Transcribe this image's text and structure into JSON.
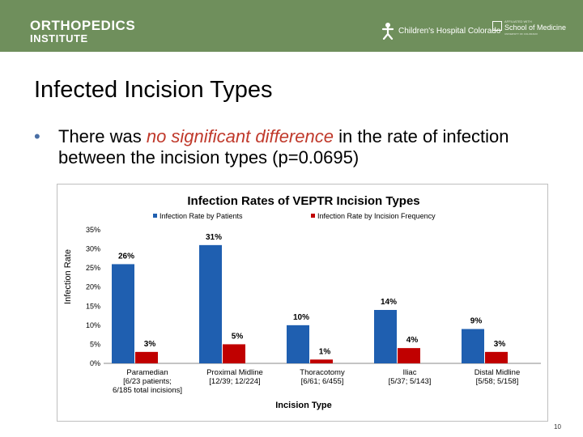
{
  "header": {
    "brand_line1": "ORTHOPEDICS",
    "brand_line2": "INSTITUTE",
    "partner1": "Children's Hospital Colorado",
    "partner2_small": "AFFILIATED WITH",
    "partner2_name": "School of Medicine",
    "partner2_sub": "UNIVERSITY OF COLORADO"
  },
  "slide": {
    "title": "Infected Incision Types",
    "bullet_dot": "•",
    "bullet_pre": "There was ",
    "bullet_emphasis": "no significant difference",
    "bullet_post": " in the rate of infection between the incision types (p=0.0695)",
    "page_number": "10"
  },
  "colors": {
    "header_bg": "#6f8f5c",
    "patients": "#1f5fb0",
    "frequency": "#c00000",
    "emphasis": "#c0392b"
  },
  "chart_data": {
    "type": "bar",
    "title": "Infection Rates of VEPTR Incision Types",
    "xlabel": "Incision Type",
    "ylabel": "Infection Rate",
    "ylim": [
      0,
      35
    ],
    "yticks": [
      "0%",
      "5%",
      "10%",
      "15%",
      "20%",
      "25%",
      "30%",
      "35%"
    ],
    "categories": [
      [
        "Paramedian",
        "[6/23 patients;",
        "6/185 total incisions]"
      ],
      [
        "Proximal Midline",
        "[12/39; 12/224]"
      ],
      [
        "Thoracotomy",
        "[6/61; 6/455]"
      ],
      [
        "Iliac",
        "[5/37; 5/143]"
      ],
      [
        "Distal Midline",
        "[5/58; 5/158]"
      ]
    ],
    "series": [
      {
        "name": "Infection Rate by Patients",
        "values": [
          26,
          31,
          10,
          14,
          9
        ],
        "labels": [
          "26%",
          "31%",
          "10%",
          "14%",
          "9%"
        ]
      },
      {
        "name": "Infection Rate by Incision Frequency",
        "values": [
          3,
          5,
          1,
          4,
          3
        ],
        "labels": [
          "3%",
          "5%",
          "1%",
          "4%",
          "3%"
        ]
      }
    ],
    "legend_position": "top",
    "grid": false
  }
}
